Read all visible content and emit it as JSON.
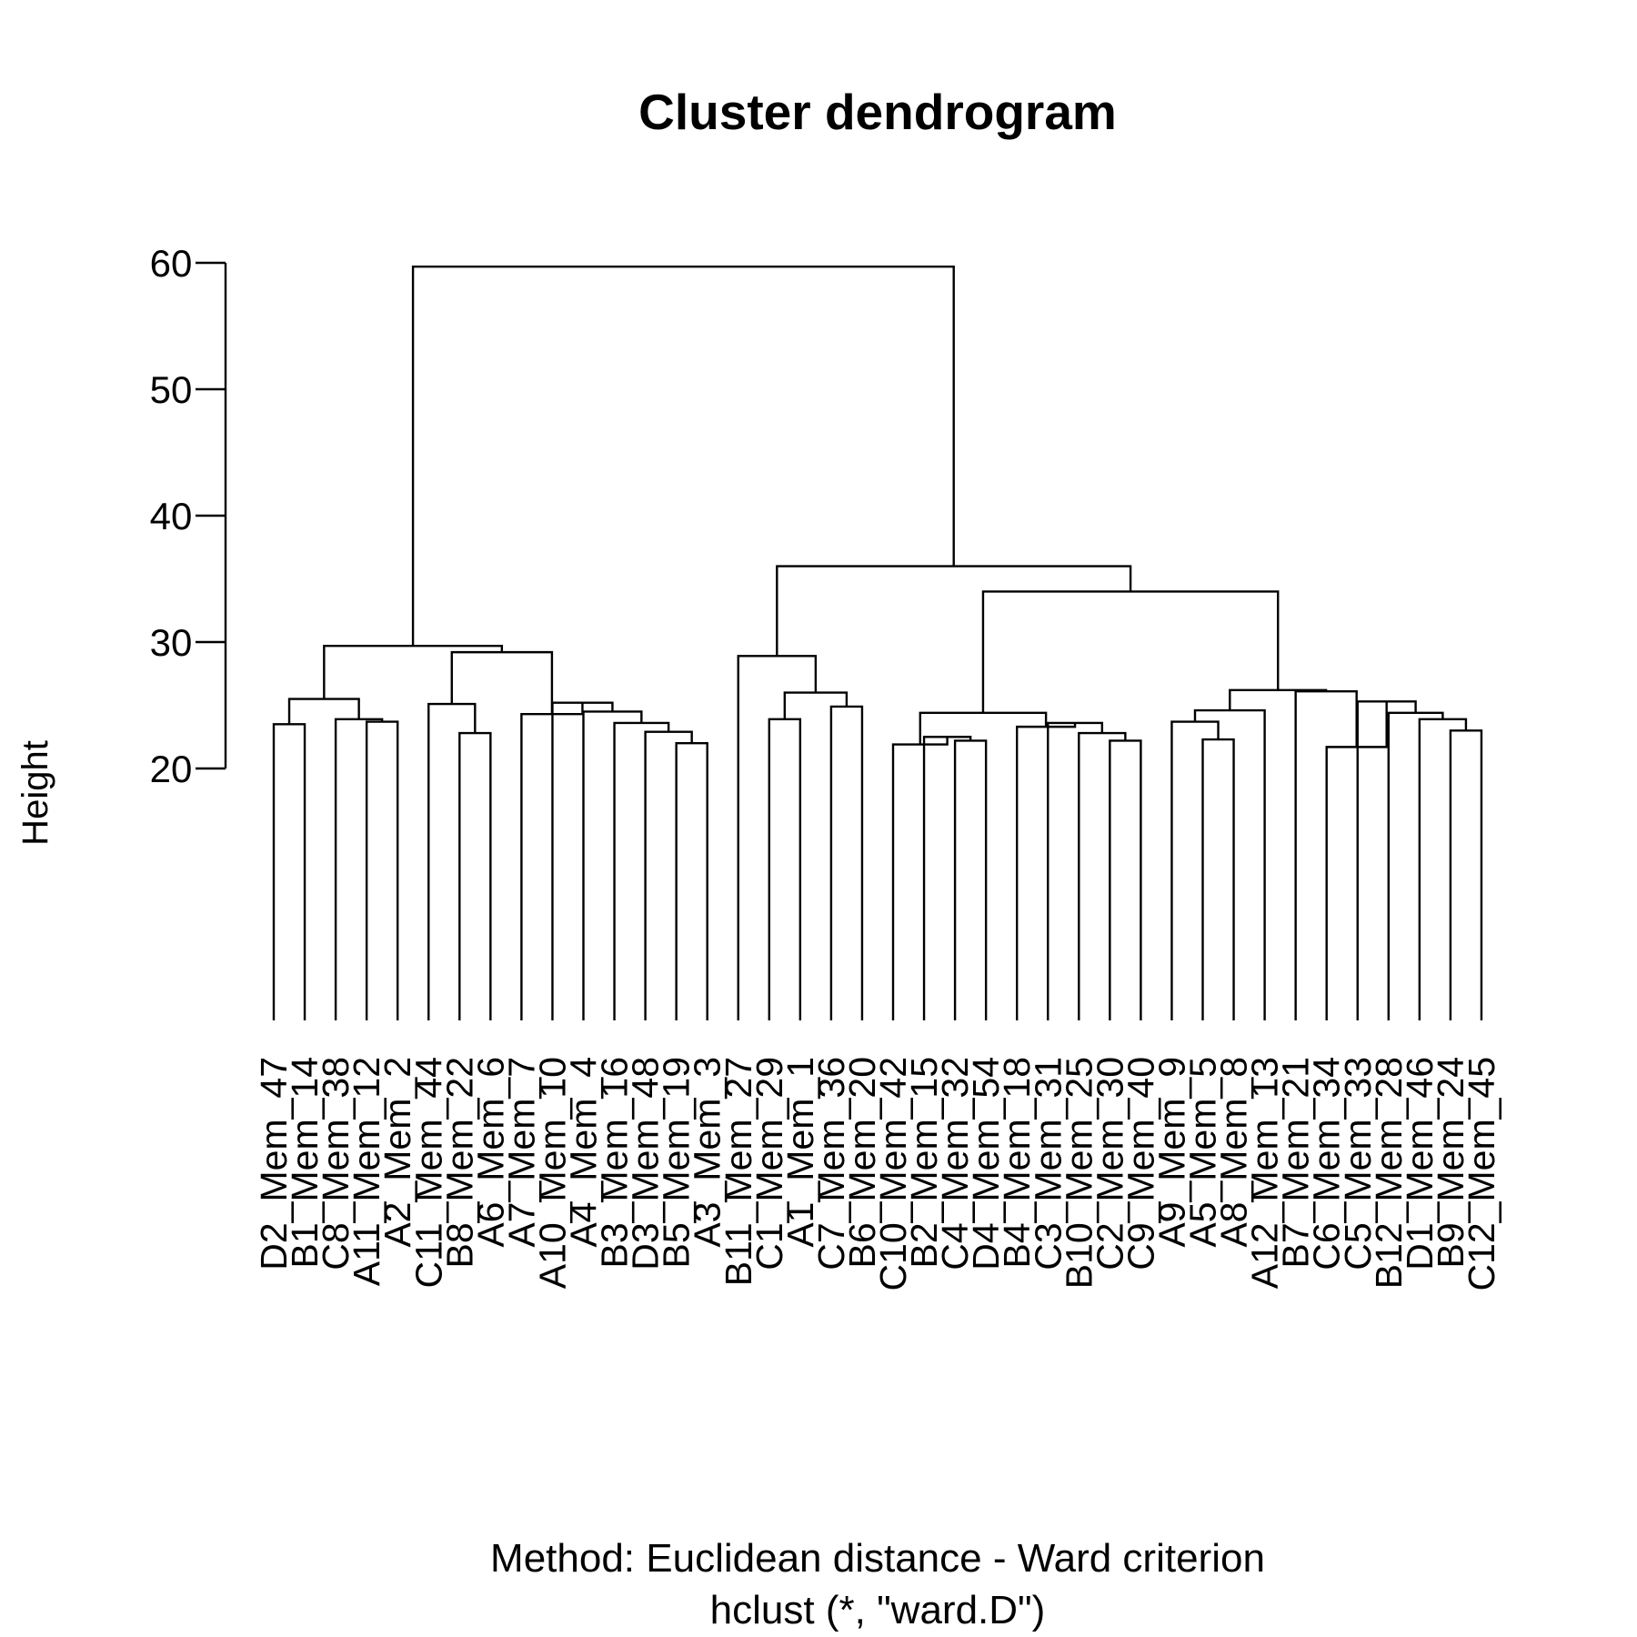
{
  "chart_data": {
    "type": "dendrogram",
    "title": "Cluster dendrogram",
    "ylabel": "Height",
    "xlabel": "Method: Euclidean distance - Ward criterion",
    "sublabel": "hclust (*, \"ward.D\")",
    "ylim": [
      20,
      60
    ],
    "yticks": [
      20,
      30,
      40,
      50,
      60
    ],
    "leaf_base_height": 0,
    "leaves": [
      "D2_Mem_47",
      "B1_Mem_14",
      "C8_Mem_38",
      "A11_Mem_12",
      "A2_Mem_2",
      "C11_Mem_44",
      "B8_Mem_22",
      "A6_Mem_6",
      "A7_Mem_7",
      "A10_Mem_10",
      "A4_Mem_4",
      "B3_Mem_16",
      "D3_Mem_48",
      "B5_Mem_19",
      "A3_Mem_3",
      "B11_Mem_27",
      "C1_Mem_29",
      "A1_Mem_1",
      "C7_Mem_36",
      "B6_Mem_20",
      "C10_Mem_42",
      "B2_Mem_15",
      "C4_Mem_32",
      "D4_Mem_54",
      "B4_Mem_18",
      "C3_Mem_31",
      "B10_Mem_25",
      "C2_Mem_30",
      "C9_Mem_40",
      "A9_Mem_9",
      "A5_Mem_5",
      "A8_Mem_8",
      "A12_Mem_13",
      "B7_Mem_21",
      "C6_Mem_34",
      "C5_Mem_33",
      "B12_Mem_28",
      "D1_Mem_46",
      "B9_Mem_24",
      "C12_Mem_45"
    ],
    "merges": [
      {
        "left": 0,
        "right": 1,
        "height": 23.5
      },
      {
        "left": 3,
        "right": 4,
        "height": 23.7
      },
      {
        "left": 2,
        "right": "m1",
        "height": 23.9
      },
      {
        "left": "m0",
        "right": "m2",
        "height": 25.5
      },
      {
        "left": 6,
        "right": 7,
        "height": 22.8
      },
      {
        "left": 5,
        "right": "m4",
        "height": 25.1
      },
      {
        "left": 13,
        "right": 14,
        "height": 22.0
      },
      {
        "left": 12,
        "right": "m6",
        "height": 22.9
      },
      {
        "left": 11,
        "right": "m7",
        "height": 23.6
      },
      {
        "left": 10,
        "right": "m8",
        "height": 24.5
      },
      {
        "left": 9,
        "right": "m9",
        "height": 25.2
      },
      {
        "left": 8,
        "right": "m10",
        "height": 24.3
      },
      {
        "left": "m5",
        "right": "m11",
        "height": 29.2
      },
      {
        "left": "m3",
        "right": "m12",
        "height": 29.7
      },
      {
        "left": 16,
        "right": 17,
        "height": 23.9
      },
      {
        "left": 18,
        "right": 19,
        "height": 24.9
      },
      {
        "left": "m14",
        "right": "m15",
        "height": 26.0
      },
      {
        "left": 15,
        "right": "m16",
        "height": 28.9
      },
      {
        "left": 22,
        "right": 23,
        "height": 22.2
      },
      {
        "left": 21,
        "right": "m18",
        "height": 22.5
      },
      {
        "left": 20,
        "right": "m19",
        "height": 21.9
      },
      {
        "left": 27,
        "right": 28,
        "height": 22.2
      },
      {
        "left": 26,
        "right": "m21",
        "height": 22.8
      },
      {
        "left": 25,
        "right": "m22",
        "height": 23.6
      },
      {
        "left": 24,
        "right": "m23",
        "height": 23.3
      },
      {
        "left": "m20",
        "right": "m24",
        "height": 24.4
      },
      {
        "left": 30,
        "right": 31,
        "height": 22.3
      },
      {
        "left": 29,
        "right": "m26",
        "height": 23.7
      },
      {
        "left": "m27",
        "right": 32,
        "height": 24.6
      },
      {
        "left": 38,
        "right": 39,
        "height": 23.0
      },
      {
        "left": 37,
        "right": "m29",
        "height": 23.9
      },
      {
        "left": 36,
        "right": "m30",
        "height": 24.4
      },
      {
        "left": 35,
        "right": "m31",
        "height": 25.3
      },
      {
        "left": 34,
        "right": "m32",
        "height": 21.7
      },
      {
        "left": 33,
        "right": "m33",
        "height": 26.1
      },
      {
        "left": "m28",
        "right": "m34",
        "height": 26.2
      },
      {
        "left": "m25",
        "right": "m35",
        "height": 34.0
      },
      {
        "left": "m17",
        "right": "m36",
        "height": 36.0
      },
      {
        "left": "m13",
        "right": "m37",
        "height": 59.7
      }
    ]
  }
}
